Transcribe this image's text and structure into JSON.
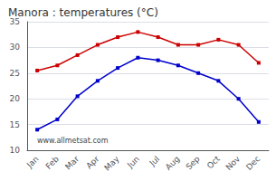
{
  "chart_data": {
    "type": "line",
    "title": "Manora : temperatures (°C)",
    "categories": [
      "Jan",
      "Feb",
      "Mar",
      "Apr",
      "May",
      "Jun",
      "Jul",
      "Aug",
      "Sep",
      "Oct",
      "Nov",
      "Dec"
    ],
    "series": [
      {
        "color": "#cc0000",
        "marker": "square",
        "values": [
          25.5,
          26.5,
          28.5,
          30.5,
          32.0,
          33.0,
          32.0,
          30.5,
          30.5,
          31.5,
          30.5,
          27.0
        ]
      },
      {
        "color": "#0000cc",
        "marker": "square",
        "values": [
          14.0,
          16.0,
          20.5,
          23.5,
          26.0,
          28.0,
          27.5,
          26.5,
          25.0,
          23.5,
          20.0,
          15.5
        ]
      }
    ],
    "ylim": [
      10,
      35
    ],
    "yticks": [
      10,
      15,
      20,
      25,
      30,
      35
    ],
    "grid": true,
    "annotations": [
      "www.allmetsat.com"
    ]
  }
}
